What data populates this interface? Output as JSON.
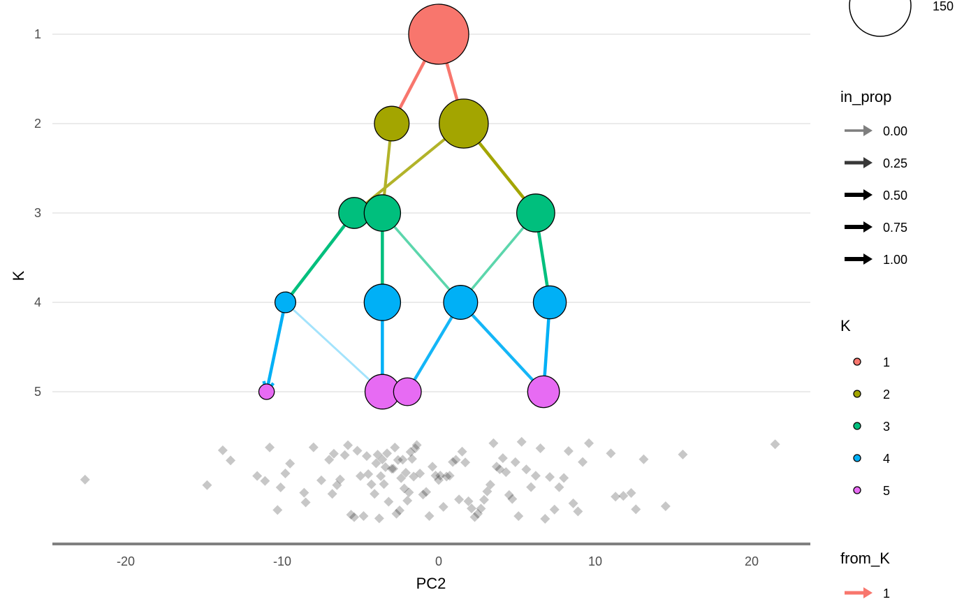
{
  "chart_data": {
    "type": "scatter",
    "xlabel": "PC2",
    "ylabel": "K",
    "x_ticks": [
      -20,
      -10,
      0,
      10,
      20
    ],
    "y_ticks": [
      1,
      2,
      3,
      4,
      5
    ],
    "xlim": [
      -24.5,
      23.5
    ],
    "colors": {
      "1": "#F8766D",
      "2": "#A3A500",
      "3": "#00BF7D",
      "4": "#00B0F6",
      "5": "#E76BF3"
    },
    "nodes": [
      {
        "id": "1-1",
        "K": 1,
        "pc2": 0.0,
        "size": 150
      },
      {
        "id": "2-1",
        "K": 2,
        "pc2": -3.0,
        "size": 50
      },
      {
        "id": "2-2",
        "K": 2,
        "pc2": 1.6,
        "size": 100
      },
      {
        "id": "3-1",
        "K": 3,
        "pc2": -5.4,
        "size": 40
      },
      {
        "id": "3-2",
        "K": 3,
        "pc2": -3.6,
        "size": 55
      },
      {
        "id": "3-3",
        "K": 3,
        "pc2": 6.2,
        "size": 60
      },
      {
        "id": "4-1",
        "K": 4,
        "pc2": -9.8,
        "size": 18
      },
      {
        "id": "4-2",
        "K": 4,
        "pc2": -3.6,
        "size": 55
      },
      {
        "id": "4-3",
        "K": 4,
        "pc2": 1.4,
        "size": 48
      },
      {
        "id": "4-4",
        "K": 4,
        "pc2": 7.1,
        "size": 45
      },
      {
        "id": "5-1",
        "K": 5,
        "pc2": -11.0,
        "size": 10
      },
      {
        "id": "5-2",
        "K": 5,
        "pc2": -3.6,
        "size": 50
      },
      {
        "id": "5-3",
        "K": 5,
        "pc2": -2.0,
        "size": 32
      },
      {
        "id": "5-4",
        "K": 5,
        "pc2": 6.7,
        "size": 42
      }
    ],
    "edges": [
      {
        "from": "1-1",
        "to": "2-1",
        "from_K": 1,
        "in_prop": 1.0
      },
      {
        "from": "1-1",
        "to": "2-2",
        "from_K": 1,
        "in_prop": 1.0
      },
      {
        "from": "2-1",
        "to": "3-2",
        "from_K": 2,
        "in_prop": 0.8
      },
      {
        "from": "2-2",
        "to": "3-1",
        "from_K": 2,
        "in_prop": 0.8
      },
      {
        "from": "2-2",
        "to": "3-3",
        "from_K": 2,
        "in_prop": 1.0
      },
      {
        "from": "3-1",
        "to": "4-1",
        "from_K": 3,
        "in_prop": 1.0
      },
      {
        "from": "3-2",
        "to": "4-2",
        "from_K": 3,
        "in_prop": 1.0
      },
      {
        "from": "3-2",
        "to": "4-3",
        "from_K": 3,
        "in_prop": 0.55
      },
      {
        "from": "3-3",
        "to": "4-3",
        "from_K": 3,
        "in_prop": 0.55
      },
      {
        "from": "3-3",
        "to": "4-4",
        "from_K": 3,
        "in_prop": 1.0
      },
      {
        "from": "4-1",
        "to": "5-1",
        "from_K": 4,
        "in_prop": 1.0
      },
      {
        "from": "4-1",
        "to": "5-2",
        "from_K": 4,
        "in_prop": 0.2
      },
      {
        "from": "4-2",
        "to": "5-2",
        "from_K": 4,
        "in_prop": 1.0
      },
      {
        "from": "4-3",
        "to": "5-3",
        "from_K": 4,
        "in_prop": 0.9
      },
      {
        "from": "4-3",
        "to": "5-4",
        "from_K": 4,
        "in_prop": 0.9
      },
      {
        "from": "4-4",
        "to": "5-4",
        "from_K": 4,
        "in_prop": 1.0
      }
    ],
    "samples_pc2": [
      -22.6,
      -14.8,
      -13.8,
      -13.3,
      -11.6,
      -11.1,
      -10.8,
      -10.3,
      -10.1,
      -9.8,
      -9.5,
      -8.5,
      -8.6,
      -8.0,
      -7.5,
      -7.0,
      -6.8,
      -6.7,
      -6.5,
      -6.3,
      -6.0,
      -5.8,
      -5.6,
      -5.4,
      -5.2,
      -5.0,
      -4.8,
      -4.6,
      -4.5,
      -4.3,
      -4.1,
      -4.0,
      -3.9,
      -3.8,
      -3.7,
      -3.6,
      -3.5,
      -3.4,
      -3.3,
      -3.2,
      -3.0,
      -2.9,
      -2.8,
      -2.7,
      -2.6,
      -2.5,
      -2.4,
      -2.3,
      -2.2,
      -2.1,
      -2.0,
      -1.9,
      -1.8,
      -1.7,
      -1.6,
      -1.5,
      -1.4,
      -1.2,
      -1.0,
      -0.8,
      -0.6,
      -0.4,
      -0.2,
      0.0,
      0.1,
      0.3,
      0.5,
      0.7,
      0.9,
      1.1,
      1.3,
      1.5,
      1.7,
      1.9,
      2.1,
      2.3,
      2.5,
      2.7,
      2.9,
      3.1,
      3.3,
      3.5,
      3.7,
      3.9,
      4.1,
      4.3,
      4.5,
      4.7,
      4.9,
      5.1,
      5.3,
      5.6,
      5.9,
      6.2,
      6.5,
      6.8,
      7.1,
      7.4,
      7.7,
      8.0,
      8.3,
      8.6,
      8.9,
      9.2,
      9.6,
      11.0,
      11.3,
      11.8,
      12.3,
      12.6,
      13.1,
      14.5,
      15.6,
      21.5
    ],
    "size_legend": {
      "label": "150"
    },
    "in_prop_legend": {
      "title": "in_prop",
      "labels": [
        "0.00",
        "0.25",
        "0.50",
        "0.75",
        "1.00"
      ],
      "values": [
        0,
        0.25,
        0.5,
        0.75,
        1.0
      ]
    },
    "K_legend": {
      "title": "K",
      "labels": [
        "1",
        "2",
        "3",
        "4",
        "5"
      ]
    },
    "from_K_legend": {
      "title": "from_K",
      "labels": [
        "1"
      ]
    }
  }
}
